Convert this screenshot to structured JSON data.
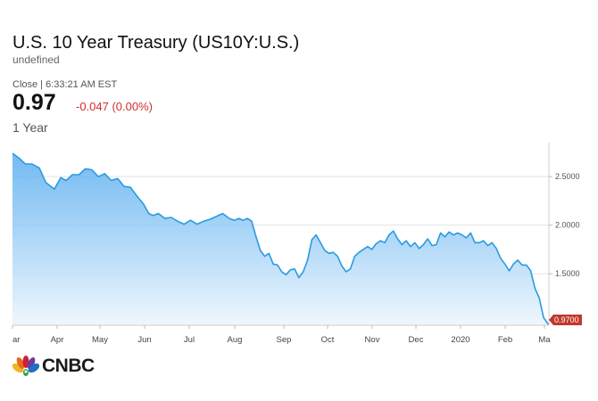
{
  "header": {
    "title": "U.S. 10 Year Treasury (US10Y:U.S.)",
    "subtitle": "undefined",
    "close_line": "Close | 6:33:21 AM EST",
    "last_value": "0.97",
    "change": "-0.047 (0.00%)",
    "range_label": "1 Year"
  },
  "colors": {
    "line": "#2a9be0",
    "fill_top": "#5aaef0",
    "fill_bottom": "#eef6fd",
    "change_negative": "#d62b2b",
    "last_badge": "#c0392b"
  },
  "chart_data": {
    "type": "area",
    "x_tick_labels": [
      "ar",
      "Apr",
      "May",
      "Jun",
      "Jul",
      "Aug",
      "Sep",
      "Oct",
      "Nov",
      "Dec",
      "2020",
      "Feb",
      "Ma"
    ],
    "y_tick_labels": [
      "2.5000",
      "2.0000",
      "1.5000"
    ],
    "y_ticks": [
      2.5,
      2.0,
      1.5
    ],
    "ylim": [
      0.97,
      2.85
    ],
    "last_value_label": "0.9700",
    "grid": "horizontal",
    "series": [
      {
        "x": [
          0,
          0.012,
          0.024,
          0.036,
          0.05,
          0.062,
          0.078,
          0.09,
          0.1,
          0.112,
          0.124,
          0.136,
          0.148,
          0.16,
          0.172,
          0.184,
          0.196,
          0.208,
          0.22,
          0.232,
          0.244,
          0.254,
          0.262,
          0.272,
          0.284,
          0.296,
          0.308,
          0.32,
          0.332,
          0.344,
          0.356,
          0.368,
          0.38,
          0.392,
          0.404,
          0.414,
          0.422,
          0.43,
          0.438,
          0.446,
          0.454,
          0.462,
          0.47,
          0.478,
          0.486,
          0.494,
          0.502,
          0.51,
          0.518,
          0.526,
          0.534,
          0.542,
          0.55,
          0.558,
          0.566,
          0.574,
          0.582,
          0.59,
          0.598,
          0.606,
          0.614,
          0.622,
          0.63,
          0.638,
          0.646,
          0.654,
          0.662,
          0.67,
          0.678,
          0.686,
          0.694,
          0.702,
          0.71,
          0.718,
          0.726,
          0.734,
          0.742,
          0.75,
          0.758,
          0.766,
          0.774,
          0.782,
          0.79,
          0.798,
          0.806,
          0.814,
          0.822,
          0.83,
          0.838,
          0.846,
          0.854,
          0.862,
          0.87,
          0.878,
          0.886,
          0.894,
          0.902,
          0.91,
          0.918,
          0.926,
          0.934,
          0.942,
          0.95,
          0.958,
          0.966,
          0.974,
          0.982,
          0.99,
          1.0
        ],
        "y": [
          2.74,
          2.69,
          2.63,
          2.63,
          2.59,
          2.44,
          2.37,
          2.49,
          2.46,
          2.52,
          2.52,
          2.58,
          2.57,
          2.5,
          2.53,
          2.46,
          2.48,
          2.4,
          2.39,
          2.3,
          2.22,
          2.12,
          2.1,
          2.12,
          2.07,
          2.08,
          2.04,
          2.01,
          2.05,
          2.01,
          2.04,
          2.06,
          2.09,
          2.12,
          2.07,
          2.05,
          2.07,
          2.05,
          2.07,
          2.04,
          1.88,
          1.74,
          1.68,
          1.71,
          1.6,
          1.59,
          1.52,
          1.49,
          1.54,
          1.55,
          1.46,
          1.52,
          1.64,
          1.85,
          1.9,
          1.82,
          1.74,
          1.71,
          1.72,
          1.68,
          1.58,
          1.52,
          1.55,
          1.68,
          1.72,
          1.75,
          1.78,
          1.75,
          1.81,
          1.84,
          1.82,
          1.9,
          1.94,
          1.86,
          1.8,
          1.84,
          1.78,
          1.82,
          1.76,
          1.8,
          1.86,
          1.79,
          1.8,
          1.92,
          1.88,
          1.93,
          1.9,
          1.92,
          1.9,
          1.87,
          1.92,
          1.82,
          1.82,
          1.84,
          1.79,
          1.82,
          1.76,
          1.66,
          1.6,
          1.53,
          1.6,
          1.64,
          1.59,
          1.59,
          1.53,
          1.35,
          1.25,
          1.05,
          0.97
        ]
      }
    ]
  }
}
